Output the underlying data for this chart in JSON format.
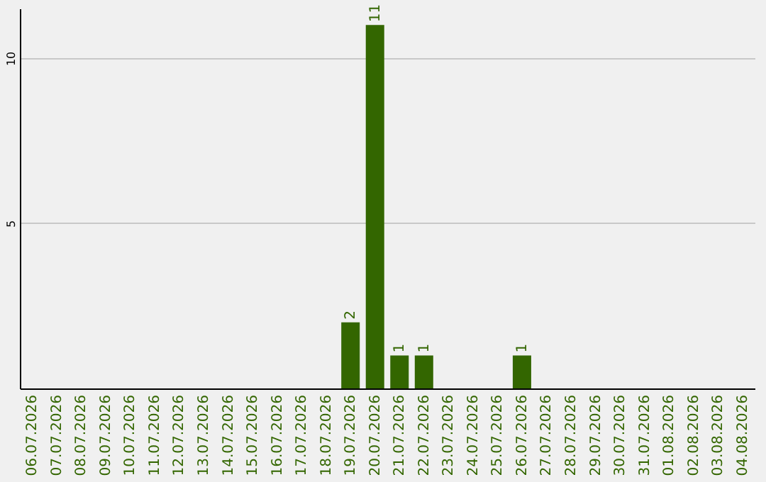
{
  "chart_data": {
    "type": "bar",
    "categories": [
      "06.07.2026",
      "07.07.2026",
      "08.07.2026",
      "09.07.2026",
      "10.07.2026",
      "11.07.2026",
      "12.07.2026",
      "13.07.2026",
      "14.07.2026",
      "15.07.2026",
      "16.07.2026",
      "17.07.2026",
      "18.07.2026",
      "19.07.2026",
      "20.07.2026",
      "21.07.2026",
      "22.07.2026",
      "23.07.2026",
      "24.07.2026",
      "25.07.2026",
      "26.07.2026",
      "27.07.2026",
      "28.07.2026",
      "29.07.2026",
      "30.07.2026",
      "31.07.2026",
      "01.08.2026",
      "02.08.2026",
      "03.08.2026",
      "04.08.2026"
    ],
    "values": [
      0,
      0,
      0,
      0,
      0,
      0,
      0,
      0,
      0,
      0,
      0,
      0,
      0,
      2,
      11,
      1,
      1,
      0,
      0,
      0,
      1,
      0,
      0,
      0,
      0,
      0,
      0,
      0,
      0,
      0
    ],
    "value_labels": [
      null,
      null,
      null,
      null,
      null,
      null,
      null,
      null,
      null,
      null,
      null,
      null,
      null,
      "2",
      "11",
      "1",
      "1",
      null,
      null,
      null,
      "1",
      null,
      null,
      null,
      null,
      null,
      null,
      null,
      null,
      null
    ],
    "color": "#336600",
    "ylim": [
      0,
      11.5
    ],
    "yticks": [
      5,
      10
    ],
    "grid": "y"
  }
}
